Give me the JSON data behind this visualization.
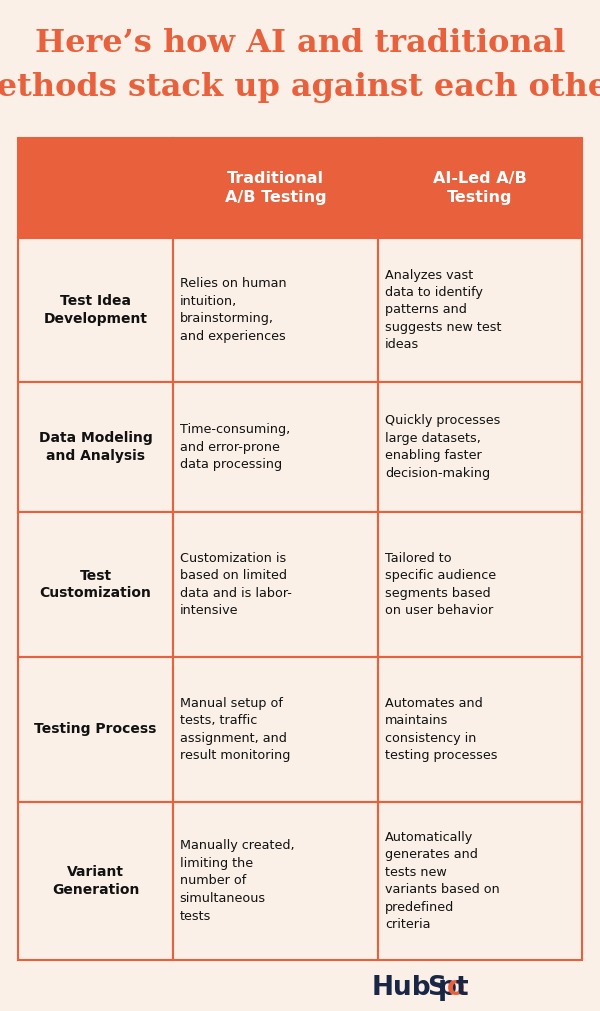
{
  "title": "Here’s how AI and traditional\nmethods stack up against each other:",
  "title_color": "#E8613C",
  "background_color": "#FAF0E8",
  "header_bg_color": "#E8613C",
  "header_text_color": "#FFFFFF",
  "cell_bg_color": "#FAF0E8",
  "border_color": "#E8613C",
  "row_label_color": "#111111",
  "cell_text_color": "#111111",
  "col_headers": [
    "Traditional\nA/B Testing",
    "AI-Led A/B\nTesting"
  ],
  "rows": [
    {
      "label": "Test Idea\nDevelopment",
      "traditional": "Relies on human\nintuition,\nbrainstorming,\nand experiences",
      "ai": "Analyzes vast\ndata to identify\npatterns and\nsuggests new test\nideas"
    },
    {
      "label": "Data Modeling\nand Analysis",
      "traditional": "Time-consuming,\nand error-prone\ndata processing",
      "ai": "Quickly processes\nlarge datasets,\nenabling faster\ndecision-making"
    },
    {
      "label": "Test\nCustomization",
      "traditional": "Customization is\nbased on limited\ndata and is labor-\nintensive",
      "ai": "Tailored to\nspecific audience\nsegments based\non user behavior"
    },
    {
      "label": "Testing Process",
      "traditional": "Manual setup of\ntests, traffic\nassignment, and\nresult monitoring",
      "ai": "Automates and\nmaintains\nconsistency in\ntesting processes"
    },
    {
      "label": "Variant\nGeneration",
      "traditional": "Manually created,\nlimiting the\nnumber of\nsimultaneous\ntests",
      "ai": "Automatically\ngenerates and\ntests new\nvariants based on\npredefined\ncriteria"
    }
  ],
  "hubspot_orange": "#E8613C",
  "hubspot_blue": "#1A2744",
  "figsize": [
    6.0,
    10.11
  ],
  "dpi": 100
}
